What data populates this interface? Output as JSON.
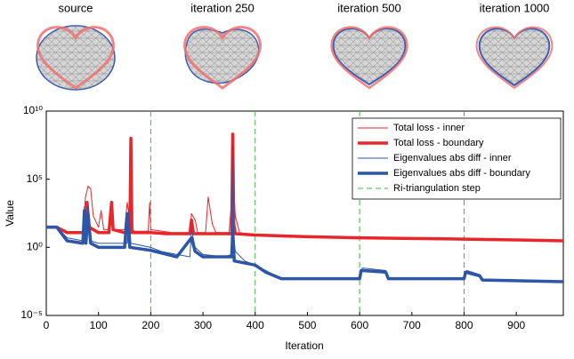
{
  "panels": [
    "source",
    "iteration 250",
    "iteration 500",
    "iteration 1000"
  ],
  "chart_data": {
    "type": "line",
    "xlabel": "Iteration",
    "ylabel": "Value",
    "xlim": [
      0,
      990
    ],
    "xticks": [
      0,
      100,
      200,
      300,
      400,
      500,
      600,
      700,
      800,
      900
    ],
    "ylim": [
      1e-05,
      10000000000
    ],
    "yscale": "log",
    "yticks": [
      {
        "value": 1e-05,
        "label": "10⁻⁵"
      },
      {
        "value": 1,
        "label": "10⁰"
      },
      {
        "value": 100000,
        "label": "10⁵"
      },
      {
        "value": 10000000000,
        "label": "10¹⁰"
      }
    ],
    "legend": "upper right",
    "series": [
      {
        "name": "Total loss - inner",
        "color": "#e8262b",
        "width": 1,
        "x": [
          0,
          20,
          40,
          70,
          75,
          80,
          85,
          90,
          100,
          105,
          110,
          120,
          125,
          130,
          150,
          155,
          160,
          163,
          170,
          195,
          198,
          200,
          240,
          275,
          278,
          285,
          290,
          305,
          310,
          318,
          325,
          350,
          355,
          358,
          362,
          370,
          400,
          500,
          600,
          700,
          800,
          900,
          990
        ],
        "values": [
          30,
          30,
          12,
          12,
          5000,
          30000,
          20000,
          200,
          30,
          500,
          20,
          20,
          300,
          20,
          20,
          2000,
          100,
          20,
          15,
          15,
          2000,
          20,
          12,
          12,
          300,
          100,
          12,
          12,
          5000,
          50,
          12,
          12,
          3000,
          50000,
          200,
          12,
          8,
          6,
          5,
          4.5,
          4,
          3.5,
          3
        ]
      },
      {
        "name": "Total loss - boundary",
        "color": "#e8262b",
        "width": 3.5,
        "x": [
          0,
          20,
          40,
          70,
          75,
          78,
          82,
          100,
          120,
          125,
          128,
          150,
          160,
          162,
          164,
          200,
          230,
          275,
          278,
          282,
          355,
          357,
          359,
          362,
          400,
          500,
          600,
          700,
          800,
          900,
          990
        ],
        "values": [
          30,
          30,
          12,
          12,
          20,
          2000,
          30,
          12,
          12,
          2000,
          20,
          12,
          12,
          100000000,
          12,
          12,
          10,
          10,
          100,
          10,
          10,
          200000000,
          50,
          10,
          8,
          6,
          5,
          4.5,
          4,
          3.5,
          3
        ]
      },
      {
        "name": "Eigenvalues abs diff - inner",
        "color": "#2e56a6",
        "width": 1,
        "x": [
          0,
          20,
          40,
          70,
          73,
          75,
          80,
          85,
          100,
          155,
          158,
          162,
          200,
          220,
          250,
          275,
          278,
          285,
          300,
          340,
          355,
          357,
          359,
          362,
          380,
          400,
          420,
          450,
          500,
          600,
          605,
          650,
          655,
          800,
          805,
          830,
          835,
          990
        ],
        "values": [
          30,
          30,
          5,
          3,
          1000,
          5,
          1000,
          3,
          2,
          2,
          500,
          2,
          1,
          0.5,
          0.3,
          0.2,
          20,
          1,
          0.3,
          0.2,
          0.3,
          30000000,
          5,
          0.5,
          0.1,
          0.05,
          0.02,
          0.005,
          0.005,
          0.005,
          0.03,
          0.02,
          0.005,
          0.005,
          0.02,
          0.01,
          0.004,
          0.003
        ]
      },
      {
        "name": "Eigenvalues abs diff - boundary",
        "color": "#2e56a6",
        "width": 3.5,
        "x": [
          0,
          20,
          40,
          70,
          73,
          76,
          80,
          85,
          100,
          150,
          155,
          160,
          200,
          250,
          278,
          285,
          300,
          355,
          357,
          360,
          400,
          420,
          450,
          600,
          603,
          650,
          655,
          800,
          803,
          830,
          835,
          990
        ],
        "values": [
          30,
          30,
          3,
          2,
          500,
          2,
          300,
          2,
          1,
          1,
          300,
          1,
          0.6,
          0.2,
          5,
          0.5,
          0.2,
          0.2,
          20,
          0.1,
          0.05,
          0.015,
          0.005,
          0.005,
          0.02,
          0.015,
          0.005,
          0.005,
          0.015,
          0.008,
          0.004,
          0.003
        ]
      }
    ],
    "vlines": {
      "name": "Ri-triangulation step",
      "color": "#3fb63f",
      "x": [
        200,
        400,
        600,
        800
      ]
    }
  }
}
